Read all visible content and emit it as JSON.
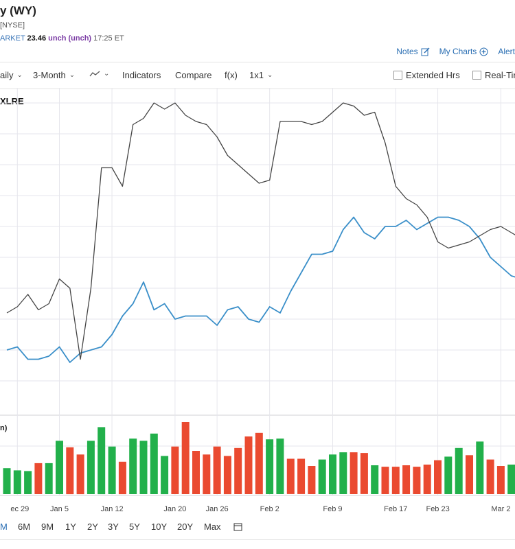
{
  "header": {
    "title": "y (WY)",
    "exchange": "[NYSE]",
    "market_label": "ARKET",
    "price": "23.46",
    "change": "unch (unch)",
    "time": "17:25 ET"
  },
  "tools": {
    "notes": "Notes",
    "my_charts": "My Charts",
    "alerts": "Alert"
  },
  "toolbar": {
    "interval": "aily",
    "period": "3-Month",
    "indicators": "Indicators",
    "compare": "Compare",
    "fx": "f(x)",
    "layout": "1x1",
    "extended_hrs": "Extended Hrs",
    "real_time": "Real-Tir"
  },
  "legend": {
    "compare_symbol": "XLRE"
  },
  "volume_label": "n)",
  "ranges": [
    "M",
    "6M",
    "9M",
    "1Y",
    "2Y",
    "3Y",
    "5Y",
    "10Y",
    "20Y",
    "Max"
  ],
  "active_range": "M",
  "colors": {
    "price_line": "#3a8fc9",
    "compare_line": "#444444",
    "vol_up": "#22b04b",
    "vol_down": "#ea4a30",
    "grid": "#e6e6ec",
    "accent": "#2b6fb3"
  },
  "chart_data": {
    "type": "line",
    "x_tick_labels": [
      "ec 29",
      "Jan 5",
      "Jan 12",
      "Jan 20",
      "Jan 26",
      "Feb 2",
      "Feb 9",
      "Feb 17",
      "Feb 23",
      "Mar 2"
    ],
    "x_tick_index": [
      1,
      5,
      10,
      16,
      20,
      25,
      31,
      37,
      41,
      47
    ],
    "series": [
      {
        "role": "price",
        "values": [
          0.2,
          0.21,
          0.17,
          0.17,
          0.18,
          0.21,
          0.16,
          0.19,
          0.2,
          0.21,
          0.25,
          0.31,
          0.35,
          0.42,
          0.33,
          0.35,
          0.3,
          0.31,
          0.31,
          0.31,
          0.28,
          0.33,
          0.34,
          0.3,
          0.29,
          0.34,
          0.32,
          0.39,
          0.45,
          0.51,
          0.51,
          0.52,
          0.59,
          0.63,
          0.58,
          0.56,
          0.6,
          0.6,
          0.62,
          0.59,
          0.61,
          0.63,
          0.63,
          0.62,
          0.6,
          0.56,
          0.5,
          0.47,
          0.44,
          0.43
        ]
      },
      {
        "role": "compare",
        "name": "XLRE",
        "values": [
          0.32,
          0.34,
          0.38,
          0.33,
          0.35,
          0.43,
          0.4,
          0.17,
          0.4,
          0.79,
          0.79,
          0.73,
          0.93,
          0.95,
          1.0,
          0.98,
          1.0,
          0.96,
          0.94,
          0.93,
          0.89,
          0.83,
          0.8,
          0.77,
          0.74,
          0.75,
          0.94,
          0.94,
          0.94,
          0.93,
          0.94,
          0.97,
          1.0,
          0.99,
          0.96,
          0.97,
          0.87,
          0.73,
          0.69,
          0.67,
          0.63,
          0.55,
          0.53,
          0.54,
          0.55,
          0.57,
          0.59,
          0.6,
          0.58,
          0.56
        ]
      }
    ],
    "volume": {
      "values": [
        0.36,
        0.33,
        0.32,
        0.43,
        0.43,
        0.74,
        0.65,
        0.55,
        0.74,
        0.93,
        0.66,
        0.45,
        0.77,
        0.74,
        0.84,
        0.53,
        0.66,
        1.0,
        0.6,
        0.55,
        0.66,
        0.53,
        0.64,
        0.8,
        0.85,
        0.76,
        0.77,
        0.49,
        0.49,
        0.39,
        0.48,
        0.55,
        0.58,
        0.58,
        0.57,
        0.4,
        0.38,
        0.38,
        0.4,
        0.38,
        0.41,
        0.47,
        0.52,
        0.64,
        0.54,
        0.73,
        0.48,
        0.39,
        0.41,
        0.4
      ],
      "up": [
        true,
        true,
        true,
        false,
        true,
        true,
        false,
        false,
        true,
        true,
        true,
        false,
        true,
        true,
        true,
        true,
        false,
        false,
        false,
        false,
        false,
        false,
        false,
        false,
        false,
        true,
        true,
        false,
        false,
        false,
        true,
        true,
        true,
        false,
        false,
        true,
        false,
        false,
        false,
        false,
        false,
        false,
        true,
        true,
        false,
        true,
        false,
        false,
        true,
        true
      ]
    }
  }
}
